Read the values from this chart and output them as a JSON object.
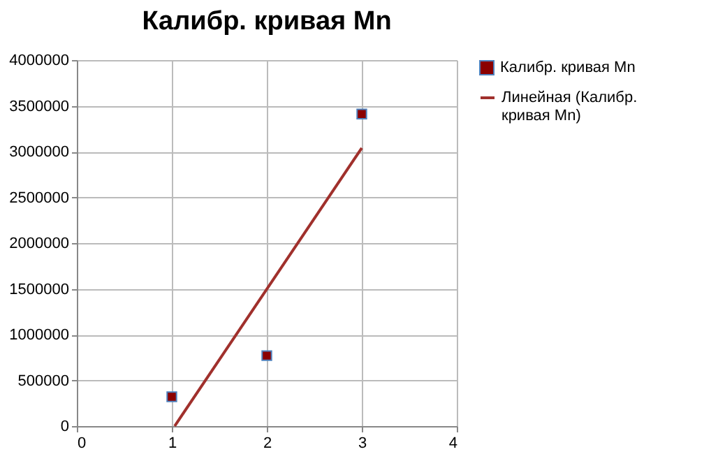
{
  "chart_data": {
    "type": "scatter",
    "title": "Калибр. кривая Mn",
    "x": [
      1,
      2,
      3
    ],
    "series": [
      {
        "type": "scatter",
        "name": "Калибр. кривая Mn",
        "color": "#8b0000",
        "marker": "square",
        "values": [
          320000,
          770000,
          3410000
        ]
      },
      {
        "type": "line",
        "name": "Линейная (Калибр. кривая Mn)",
        "color": "#a0302c",
        "marker": "none",
        "x": [
          1.03,
          3
        ],
        "values": [
          0,
          3040000
        ]
      }
    ],
    "xlim": [
      0,
      4
    ],
    "xticks": [
      0,
      1,
      2,
      3,
      4
    ],
    "ylim": [
      0,
      4000000
    ],
    "yticks": [
      0,
      500000,
      1000000,
      1500000,
      2000000,
      2500000,
      3000000,
      3500000,
      4000000
    ],
    "grid": true,
    "legend": "right"
  }
}
